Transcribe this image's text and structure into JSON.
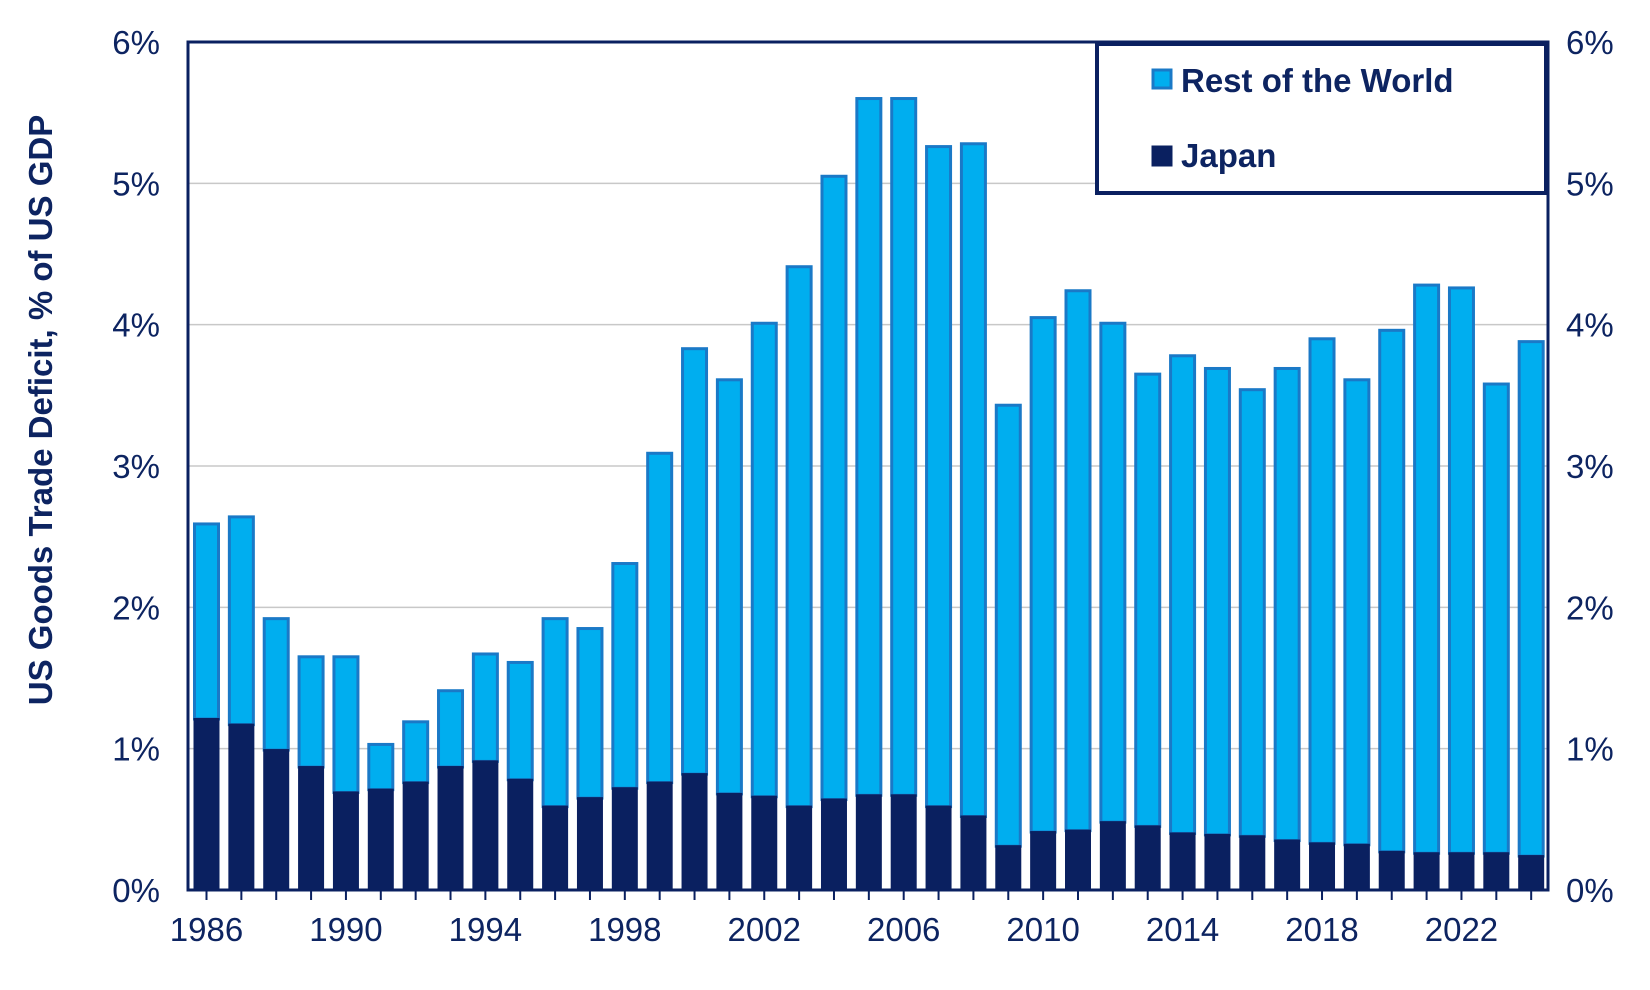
{
  "chart_data": {
    "type": "bar",
    "stacked": true,
    "ylabel": "US Goods Trade Deficit, % of US GDP",
    "ylim": [
      0,
      6
    ],
    "y_ticks": [
      "0%",
      "1%",
      "2%",
      "3%",
      "4%",
      "5%",
      "6%"
    ],
    "y_ticks_right": [
      "0%",
      "1%",
      "2%",
      "3%",
      "4%",
      "5%",
      "6%"
    ],
    "x_tick_labels": [
      "1986",
      "1990",
      "1994",
      "1998",
      "2002",
      "2006",
      "2010",
      "2014",
      "2018",
      "2022"
    ],
    "grid": true,
    "legend_position": "top-right",
    "categories": [
      1986,
      1987,
      1988,
      1989,
      1990,
      1991,
      1992,
      1993,
      1994,
      1995,
      1996,
      1997,
      1998,
      1999,
      2000,
      2001,
      2002,
      2003,
      2004,
      2005,
      2006,
      2007,
      2008,
      2009,
      2010,
      2011,
      2012,
      2013,
      2014,
      2015,
      2016,
      2017,
      2018,
      2019,
      2020,
      2021,
      2022,
      2023,
      2024
    ],
    "series": [
      {
        "name": "Japan",
        "color": "#0a2060",
        "values": [
          1.21,
          1.17,
          0.99,
          0.87,
          0.69,
          0.71,
          0.76,
          0.87,
          0.91,
          0.78,
          0.59,
          0.65,
          0.72,
          0.76,
          0.82,
          0.68,
          0.66,
          0.59,
          0.64,
          0.67,
          0.67,
          0.59,
          0.52,
          0.31,
          0.41,
          0.42,
          0.48,
          0.45,
          0.4,
          0.39,
          0.38,
          0.35,
          0.33,
          0.32,
          0.27,
          0.26,
          0.26,
          0.26,
          0.24
        ]
      },
      {
        "name": "Rest of the World",
        "color": "#00aeef",
        "edge_color": "#1a79c7",
        "values": [
          1.38,
          1.47,
          0.93,
          0.78,
          0.96,
          0.32,
          0.43,
          0.54,
          0.76,
          0.83,
          1.33,
          1.2,
          1.59,
          2.33,
          3.01,
          2.93,
          3.35,
          3.82,
          4.41,
          4.93,
          4.93,
          4.67,
          4.76,
          3.12,
          3.64,
          3.82,
          3.53,
          3.2,
          3.38,
          3.3,
          3.16,
          3.34,
          3.57,
          3.29,
          3.69,
          4.02,
          4.0,
          3.32,
          3.64
        ]
      }
    ]
  }
}
